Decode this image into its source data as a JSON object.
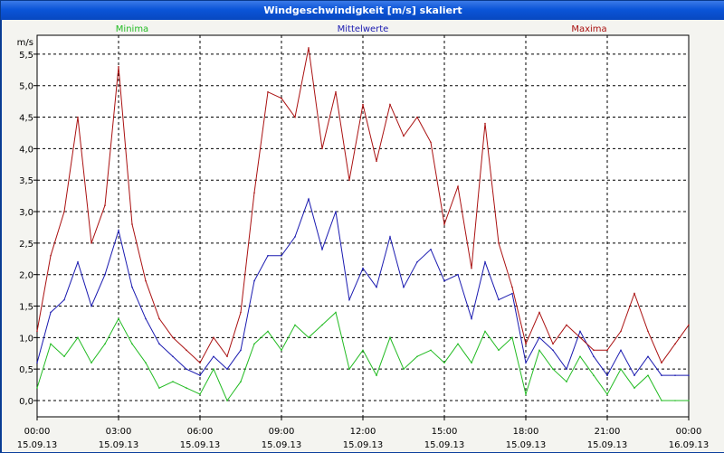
{
  "window": {
    "title": "Windgeschwindigkeit [m/s] skaliert"
  },
  "chart_data": {
    "type": "line",
    "title": "Windgeschwindigkeit [m/s] skaliert",
    "ylabel": "m/s",
    "ylim": [
      0,
      5.8
    ],
    "yticks": [
      "0,0",
      "0,5",
      "1,0",
      "1,5",
      "2,0",
      "2,5",
      "3,0",
      "3,5",
      "4,0",
      "4,5",
      "5,0",
      "5,5"
    ],
    "yticks_values": [
      0,
      0.5,
      1,
      1.5,
      2,
      2.5,
      3,
      3.5,
      4,
      4.5,
      5,
      5.5
    ],
    "xlim": [
      0,
      24
    ],
    "xticks": [
      {
        "t": 0,
        "time": "00:00",
        "date": "15.09.13"
      },
      {
        "t": 3,
        "time": "03:00",
        "date": "15.09.13"
      },
      {
        "t": 6,
        "time": "06:00",
        "date": "15.09.13"
      },
      {
        "t": 9,
        "time": "09:00",
        "date": "15.09.13"
      },
      {
        "t": 12,
        "time": "12:00",
        "date": "15.09.13"
      },
      {
        "t": 15,
        "time": "15:00",
        "date": "15.09.13"
      },
      {
        "t": 18,
        "time": "18:00",
        "date": "15.09.13"
      },
      {
        "t": 21,
        "time": "21:00",
        "date": "15.09.13"
      },
      {
        "t": 24,
        "time": "00:00",
        "date": "16.09.13"
      }
    ],
    "grid": true,
    "series": [
      {
        "name": "Minima",
        "color": "#22bb22",
        "x": [
          0,
          0.5,
          1,
          1.5,
          2,
          2.5,
          3,
          3.5,
          4,
          4.5,
          5,
          5.5,
          6,
          6.5,
          7,
          7.5,
          8,
          8.5,
          9,
          9.5,
          10,
          10.5,
          11,
          11.5,
          12,
          12.5,
          13,
          13.5,
          14,
          14.5,
          15,
          15.5,
          16,
          16.5,
          17,
          17.5,
          18,
          18.5,
          19,
          19.5,
          20,
          20.5,
          21,
          21.5,
          22,
          22.5,
          23,
          23.5,
          24
        ],
        "values": [
          0.2,
          0.9,
          0.7,
          1.0,
          0.6,
          0.9,
          1.3,
          0.9,
          0.6,
          0.2,
          0.3,
          0.2,
          0.1,
          0.5,
          0.0,
          0.3,
          0.9,
          1.1,
          0.8,
          1.2,
          1.0,
          1.2,
          1.4,
          0.5,
          0.8,
          0.4,
          1.0,
          0.5,
          0.7,
          0.8,
          0.6,
          0.9,
          0.6,
          1.1,
          0.8,
          1.0,
          0.1,
          0.8,
          0.5,
          0.3,
          0.7,
          0.4,
          0.1,
          0.5,
          0.2,
          0.4,
          0.0,
          0.0,
          0.0
        ]
      },
      {
        "name": "Mittelwerte",
        "color": "#1a1ab0",
        "x": [
          0,
          0.5,
          1,
          1.5,
          2,
          2.5,
          3,
          3.5,
          4,
          4.5,
          5,
          5.5,
          6,
          6.5,
          7,
          7.5,
          8,
          8.5,
          9,
          9.5,
          10,
          10.5,
          11,
          11.5,
          12,
          12.5,
          13,
          13.5,
          14,
          14.5,
          15,
          15.5,
          16,
          16.5,
          17,
          17.5,
          18,
          18.5,
          19,
          19.5,
          20,
          20.5,
          21,
          21.5,
          22,
          22.5,
          23,
          23.5,
          24
        ],
        "values": [
          0.6,
          1.4,
          1.6,
          2.2,
          1.5,
          2.0,
          2.7,
          1.8,
          1.3,
          0.9,
          0.7,
          0.5,
          0.4,
          0.7,
          0.5,
          0.8,
          1.9,
          2.3,
          2.3,
          2.6,
          3.2,
          2.4,
          3.0,
          1.6,
          2.1,
          1.8,
          2.6,
          1.8,
          2.2,
          2.4,
          1.9,
          2.0,
          1.3,
          2.2,
          1.6,
          1.7,
          0.6,
          1.0,
          0.8,
          0.5,
          1.1,
          0.7,
          0.4,
          0.8,
          0.4,
          0.7,
          0.4,
          0.4,
          0.4
        ]
      },
      {
        "name": "Maxima",
        "color": "#aa1111",
        "x": [
          0,
          0.5,
          1,
          1.5,
          2,
          2.5,
          3,
          3.5,
          4,
          4.5,
          5,
          5.5,
          6,
          6.5,
          7,
          7.5,
          8,
          8.5,
          9,
          9.5,
          10,
          10.5,
          11,
          11.5,
          12,
          12.5,
          13,
          13.5,
          14,
          14.5,
          15,
          15.5,
          16,
          16.5,
          17,
          17.5,
          18,
          18.5,
          19,
          19.5,
          20,
          20.5,
          21,
          21.5,
          22,
          22.5,
          23,
          23.5,
          24
        ],
        "values": [
          1.1,
          2.3,
          3.0,
          4.5,
          2.5,
          3.1,
          5.3,
          2.8,
          1.9,
          1.3,
          1.0,
          0.8,
          0.6,
          1.0,
          0.7,
          1.4,
          3.3,
          4.9,
          4.8,
          4.5,
          5.6,
          4.0,
          4.9,
          3.5,
          4.7,
          3.8,
          4.7,
          4.2,
          4.5,
          4.1,
          2.8,
          3.4,
          2.1,
          4.4,
          2.5,
          1.8,
          0.9,
          1.4,
          0.9,
          1.2,
          1.0,
          0.8,
          0.8,
          1.1,
          1.7,
          1.1,
          0.6,
          0.9,
          1.2
        ]
      }
    ],
    "legend": [
      "Minima",
      "Mittelwerte",
      "Maxima"
    ],
    "legend_placement": "top"
  }
}
